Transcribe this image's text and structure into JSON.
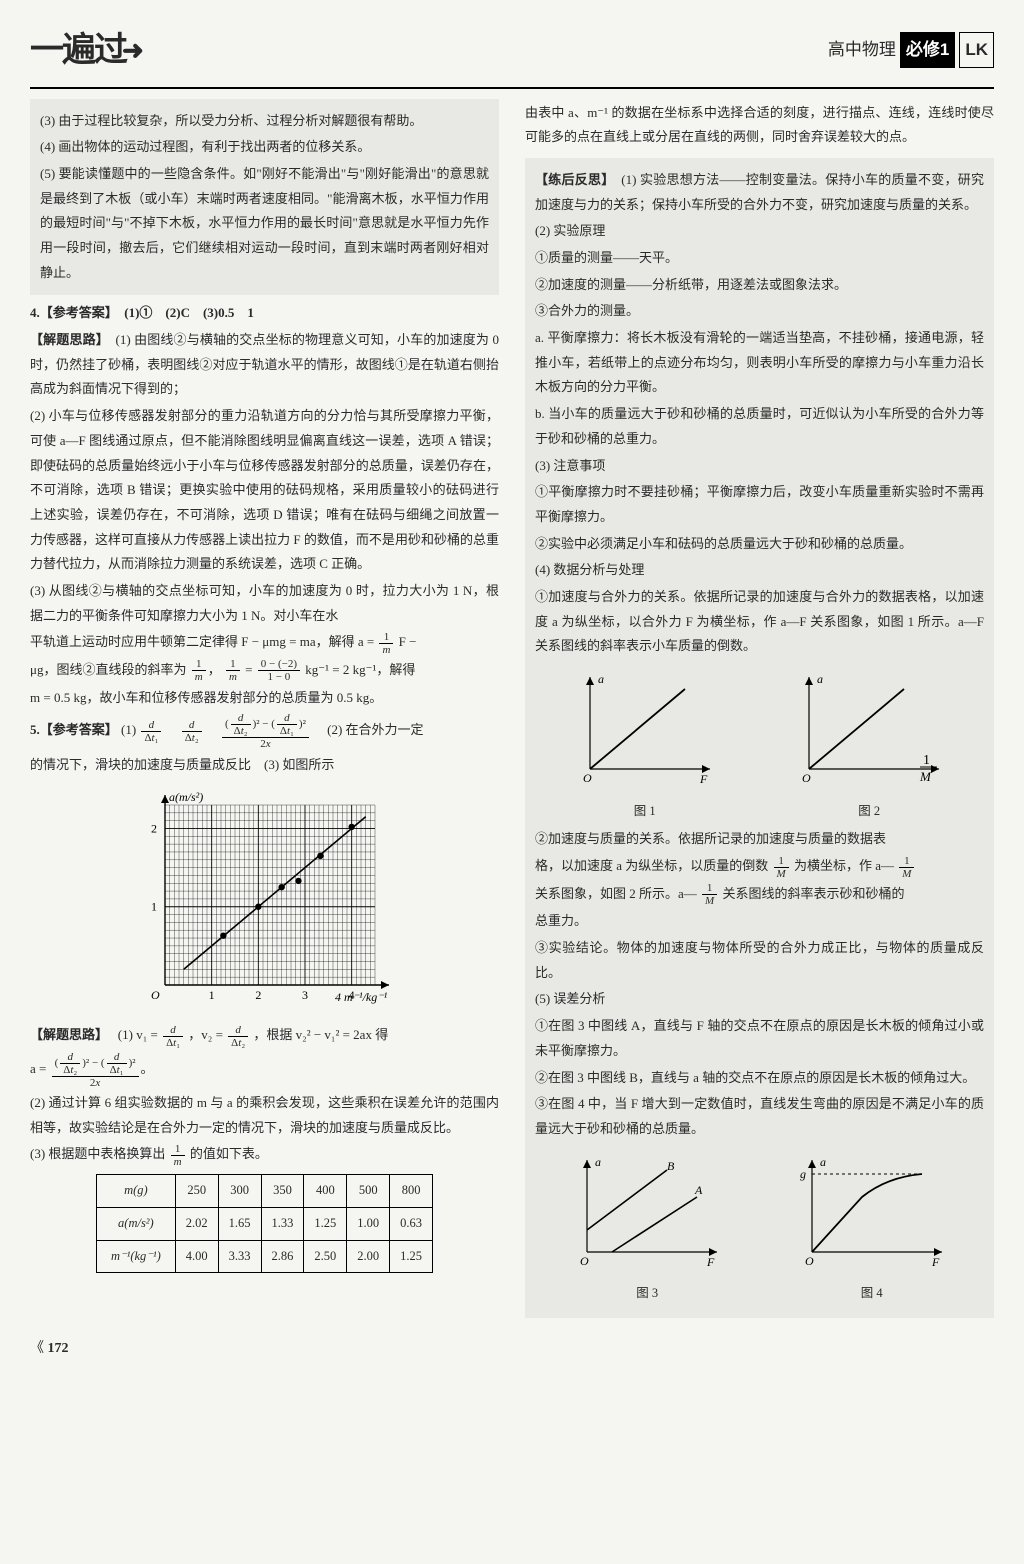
{
  "header": {
    "logo_main": "一遍过",
    "subject": "高中物理",
    "edition": "必修1",
    "lk": "LK"
  },
  "left": {
    "shaded": {
      "p3": "(3) 由于过程比较复杂，所以受力分析、过程分析对解题很有帮助。",
      "p4": "(4) 画出物体的运动过程图，有利于找出两者的位移关系。",
      "p5": "(5) 要能读懂题中的一些隐含条件。如\"刚好不能滑出\"与\"刚好能滑出\"的意思就是最终到了木板（或小车）末端时两者速度相同。\"能滑离木板，水平恒力作用的最短时间\"与\"不掉下木板，水平恒力作用的最长时间\"意思就是水平恒力先作用一段时间，撤去后，它们继续相对运动一段时间，直到末端时两者刚好相对静止。"
    },
    "q4": {
      "answer": "4.【参考答案】　(1)①　(2)C　(3)0.5　1",
      "sl": "【解题思路】",
      "p1": "(1) 由图线②与横轴的交点坐标的物理意义可知，小车的加速度为 0 时，仍然挂了砂桶，表明图线②对应于轨道水平的情形，故图线①是在轨道右侧抬高成为斜面情况下得到的；",
      "p2": "(2) 小车与位移传感器发射部分的重力沿轨道方向的分力恰与其所受摩擦力平衡，可使 a—F 图线通过原点，但不能消除图线明显偏离直线这一误差，选项 A 错误；即使砝码的总质量始终远小于小车与位移传感器发射部分的总质量，误差仍存在，不可消除，选项 B 错误；更换实验中使用的砝码规格，采用质量较小的砝码进行上述实验，误差仍存在，不可消除，选项 D 错误；唯有在砝码与细绳之间放置一力传感器，这样可直接从力传感器上读出拉力 F 的数值，而不是用砂和砂桶的总重力替代拉力，从而消除拉力测量的系统误差，选项 C 正确。",
      "p3a": "(3) 从图线②与横轴的交点坐标可知，小车的加速度为 0 时，拉力大小为 1 N，根据二力的平衡条件可知摩擦力大小为 1 N。对小车在水",
      "p3b": "平轨道上运动时应用牛顿第二定律得 F − μmg = ma，解得 a =",
      "p3c": "F −",
      "p3d": "μg，图线②直线段的斜率为",
      "p3e": "= 2 kg⁻¹，解得",
      "p3f": "m = 0.5 kg，故小车和位移传感器发射部分的总质量为 0.5 kg。"
    },
    "q5": {
      "answer_label": "5.【参考答案】",
      "a1": "(1)",
      "a2": "(2) 在合外力一定",
      "a2b": "的情况下，滑块的加速度与质量成反比　(3) 如图所示",
      "chart": {
        "ylabel": "a(m/s²)",
        "xlabel": "m⁻¹/kg⁻¹",
        "xlim": [
          0,
          4.5
        ],
        "ylim": [
          0,
          2.3
        ],
        "xticks": [
          1,
          2,
          3,
          4
        ],
        "yticks": [
          1,
          2
        ],
        "points": [
          [
            1.25,
            0.63
          ],
          [
            2.0,
            1.0
          ],
          [
            2.5,
            1.25
          ],
          [
            2.86,
            1.33
          ],
          [
            3.33,
            1.65
          ],
          [
            4.0,
            2.02
          ]
        ],
        "line": [
          [
            0.4,
            0.2
          ],
          [
            4.3,
            2.15
          ]
        ],
        "bg": "#f2f2ee",
        "grid": "#000000",
        "point_color": "#000000"
      },
      "sl": "【解题思路】",
      "p1a": "(1) v₁ =",
      "p1b": "，v₂ =",
      "p1c": "，根据 v₂² − v₁² = 2ax 得",
      "p1d": "a =",
      "p2": "(2) 通过计算 6 组实验数据的 m 与 a 的乘积会发现，这些乘积在误差允许的范围内相等，故实验结论是在合外力一定的情况下，滑块的加速度与质量成反比。",
      "p3": "(3) 根据题中表格换算出",
      "p3b": "的值如下表。"
    },
    "table": {
      "headers": [
        "m(g)",
        "250",
        "300",
        "350",
        "400",
        "500",
        "800"
      ],
      "row2": [
        "a(m/s²)",
        "2.02",
        "1.65",
        "1.33",
        "1.25",
        "1.00",
        "0.63"
      ],
      "row3": [
        "m⁻¹(kg⁻¹)",
        "4.00",
        "3.33",
        "2.86",
        "2.50",
        "2.00",
        "1.25"
      ]
    }
  },
  "right": {
    "intro": "由表中 a、m⁻¹ 的数据在坐标系中选择合适的刻度，进行描点、连线，连线时使尽可能多的点在直线上或分居在直线的两侧，同时舍弃误差较大的点。",
    "reflect": "【练后反思】",
    "r1": "(1) 实验思想方法——控制变量法。保持小车的质量不变，研究加速度与力的关系；保持小车所受的合外力不变，研究加速度与质量的关系。",
    "r2": "(2) 实验原理",
    "r2_1": "①质量的测量——天平。",
    "r2_2": "②加速度的测量——分析纸带，用逐差法或图象法求。",
    "r2_3": "③合外力的测量。",
    "r2_a": "a. 平衡摩擦力：将长木板没有滑轮的一端适当垫高，不挂砂桶，接通电源，轻推小车，若纸带上的点迹分布均匀，则表明小车所受的摩擦力与小车重力沿长木板方向的分力平衡。",
    "r2_b": "b. 当小车的质量远大于砂和砂桶的总质量时，可近似认为小车所受的合外力等于砂和砂桶的总重力。",
    "r3": "(3) 注意事项",
    "r3_1": "①平衡摩擦力时不要挂砂桶；平衡摩擦力后，改变小车质量重新实验时不需再平衡摩擦力。",
    "r3_2": "②实验中必须满足小车和砝码的总质量远大于砂和砂桶的总质量。",
    "r4": "(4) 数据分析与处理",
    "r4_1a": "①加速度与合外力的关系。依据所记录的加速度与合外力的数据表格，以加速度 a 为纵坐标，以合外力 F 为横坐标，作 a—F 关系图象，如图 1 所示。a—F 关系图线的斜率表示小车质量的倒数。",
    "fig1": "图 1",
    "fig2": "图 2",
    "r4_2a": "②加速度与质量的关系。依据所记录的加速度与质量的数据表",
    "r4_2b": "格，以加速度 a 为纵坐标，以质量的倒数",
    "r4_2c": "为横坐标，作 a—",
    "r4_2d": "关系图象，如图 2 所示。a—",
    "r4_2e": "关系图线的斜率表示砂和砂桶的",
    "r4_2f": "总重力。",
    "r4_3": "③实验结论。物体的加速度与物体所受的合外力成正比，与物体的质量成反比。",
    "r5": "(5) 误差分析",
    "r5_1": "①在图 3 中图线 A，直线与 F 轴的交点不在原点的原因是长木板的倾角过小或未平衡摩擦力。",
    "r5_2": "②在图 3 中图线 B，直线与 a 轴的交点不在原点的原因是长木板的倾角过大。",
    "r5_3": "③在图 4 中，当 F 增大到一定数值时，直线发生弯曲的原因是不满足小车的质量远大于砂和砂桶的总质量。",
    "fig3": "图 3",
    "fig4": "图 4"
  },
  "page_number": "172"
}
